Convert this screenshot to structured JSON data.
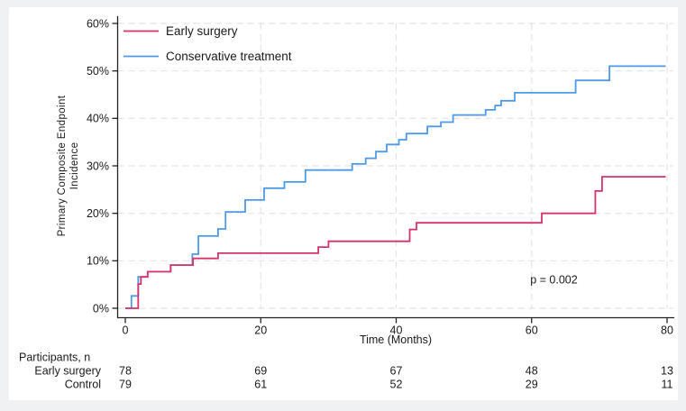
{
  "palette": {
    "page_background": "#f0f1f3",
    "panel_background": "#ffffff",
    "axis_color": "#222222",
    "grid_color": "#e4e4e6",
    "text_color": "#1a1a1a",
    "early_surgery_color": "#d5336c",
    "conservative_color": "#4f9ae8"
  },
  "chart_data": {
    "type": "line",
    "subtype": "kaplan-meier-cumulative-incidence-steps",
    "title": "",
    "xlabel": "Time (Months)",
    "ylabel_lines": [
      "Primary Composite Endpoint",
      "Incidence"
    ],
    "xlim": [
      0,
      80
    ],
    "ylim": [
      0,
      60
    ],
    "xticks": [
      0,
      20,
      40,
      60,
      80
    ],
    "xtick_labels": [
      "0",
      "20",
      "40",
      "60",
      "80"
    ],
    "yticks": [
      0,
      10,
      20,
      30,
      40,
      50,
      60
    ],
    "ytick_labels": [
      "0%",
      "10%",
      "20%",
      "30%",
      "40%",
      "50%",
      "60%"
    ],
    "grid": "dashed light-gray; horizontal at every 10%, vertical at 20/40/60/80 months",
    "legend_position": "inside-top-left",
    "annotation": {
      "text": "p = 0.002",
      "x_month": 59.8,
      "y_percent": 6
    },
    "series": [
      {
        "name": "Early surgery",
        "color": "#d5336c",
        "step_points": [
          [
            0,
            0
          ],
          [
            1.9,
            5.1
          ],
          [
            2.3,
            6.6
          ],
          [
            3.3,
            7.7
          ],
          [
            6.7,
            9.1
          ],
          [
            10,
            10.5
          ],
          [
            13.7,
            11.6
          ],
          [
            28.5,
            12.9
          ],
          [
            30,
            14.1
          ],
          [
            42,
            16.6
          ],
          [
            43,
            18.0
          ],
          [
            61.5,
            20.0
          ],
          [
            69.4,
            24.7
          ],
          [
            70.4,
            27.7
          ],
          [
            79.8,
            27.7
          ]
        ]
      },
      {
        "name": "Conservative treatment",
        "color": "#4f9ae8",
        "step_points": [
          [
            0,
            0
          ],
          [
            0.9,
            2.6
          ],
          [
            1.9,
            6.6
          ],
          [
            3.3,
            7.7
          ],
          [
            6.7,
            9.1
          ],
          [
            9.9,
            11.4
          ],
          [
            10.8,
            15.2
          ],
          [
            13.7,
            16.7
          ],
          [
            14.8,
            20.3
          ],
          [
            17.7,
            22.8
          ],
          [
            20.5,
            25.3
          ],
          [
            23.5,
            26.6
          ],
          [
            26.6,
            29.1
          ],
          [
            33.5,
            30.4
          ],
          [
            35.5,
            31.6
          ],
          [
            37,
            33.0
          ],
          [
            38.6,
            34.5
          ],
          [
            40.4,
            35.5
          ],
          [
            41.5,
            36.8
          ],
          [
            44.6,
            38.3
          ],
          [
            46.6,
            39.2
          ],
          [
            48.4,
            40.7
          ],
          [
            53.2,
            41.8
          ],
          [
            54.6,
            42.7
          ],
          [
            55.5,
            43.7
          ],
          [
            57.5,
            45.4
          ],
          [
            66.5,
            48.0
          ],
          [
            71.5,
            51.0
          ],
          [
            79.8,
            51.0
          ]
        ]
      }
    ]
  },
  "risk_table": {
    "title": "Participants, n",
    "time_points": [
      0,
      20,
      40,
      60,
      80
    ],
    "rows": [
      {
        "label": "Early surgery",
        "values": [
          "78",
          "69",
          "67",
          "48",
          "13"
        ]
      },
      {
        "label": "Control",
        "values": [
          "79",
          "61",
          "52",
          "29",
          "11"
        ]
      }
    ]
  }
}
